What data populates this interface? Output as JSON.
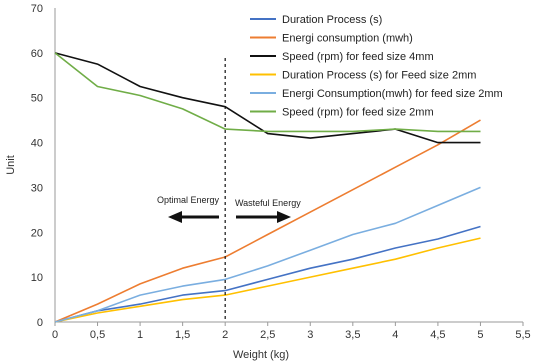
{
  "chart_data": {
    "type": "line",
    "title": "",
    "xlabel": "Weight (kg)",
    "ylabel": "Unit",
    "xlim": [
      0,
      5.5
    ],
    "ylim": [
      0,
      70
    ],
    "x_ticks": [
      "0",
      "0,5",
      "1",
      "1,5",
      "2",
      "2,5",
      "3",
      "3,5",
      "4",
      "4,5",
      "5",
      "5,5"
    ],
    "y_ticks": [
      "0",
      "10",
      "20",
      "30",
      "40",
      "50",
      "60",
      "70"
    ],
    "grid": "none",
    "legend_position": "top-right",
    "series": [
      {
        "name": "Duration Process (s)",
        "color": "#4472c4",
        "points": [
          [
            0,
            0
          ],
          [
            0.5,
            2.5
          ],
          [
            1,
            4
          ],
          [
            1.5,
            6
          ],
          [
            2,
            7
          ],
          [
            2.5,
            9.5
          ],
          [
            3,
            12
          ],
          [
            3.5,
            14
          ],
          [
            4,
            16.5
          ],
          [
            4.5,
            18.5
          ],
          [
            5,
            21.3
          ]
        ]
      },
      {
        "name": "Energi consumption (mwh)",
        "color": "#ed7d31",
        "points": [
          [
            0,
            0
          ],
          [
            0.5,
            4
          ],
          [
            1,
            8.5
          ],
          [
            1.5,
            12
          ],
          [
            2,
            14.5
          ],
          [
            2.5,
            19.5
          ],
          [
            3,
            24.5
          ],
          [
            3.5,
            29.5
          ],
          [
            4,
            34.5
          ],
          [
            4.5,
            39.5
          ],
          [
            5,
            45
          ]
        ]
      },
      {
        "name": "Speed (rpm) for feed size 4mm",
        "color": "#111111",
        "points": [
          [
            0,
            60
          ],
          [
            0.5,
            57.5
          ],
          [
            1,
            52.5
          ],
          [
            1.5,
            50
          ],
          [
            2,
            48
          ],
          [
            2.5,
            42
          ],
          [
            3,
            41
          ],
          [
            3.5,
            42
          ],
          [
            4,
            43
          ],
          [
            4.5,
            40
          ],
          [
            5,
            40
          ]
        ]
      },
      {
        "name": "Duration Process (s) for Feed size 2mm",
        "color": "#ffc000",
        "points": [
          [
            0,
            0
          ],
          [
            0.5,
            2
          ],
          [
            1,
            3.5
          ],
          [
            1.5,
            5
          ],
          [
            2,
            6
          ],
          [
            2.5,
            8
          ],
          [
            3,
            10
          ],
          [
            3.5,
            12
          ],
          [
            4,
            14
          ],
          [
            4.5,
            16.5
          ],
          [
            5,
            18.7
          ]
        ]
      },
      {
        "name": "Energi Consumption(mwh) for feed size 2mm",
        "color": "#7aaee0",
        "points": [
          [
            0,
            0
          ],
          [
            0.5,
            2.5
          ],
          [
            1,
            6
          ],
          [
            1.5,
            8
          ],
          [
            2,
            9.5
          ],
          [
            2.5,
            12.5
          ],
          [
            3,
            16
          ],
          [
            3.5,
            19.5
          ],
          [
            4,
            22
          ],
          [
            4.5,
            26
          ],
          [
            5,
            30
          ]
        ]
      },
      {
        "name": "Speed (rpm) for feed size 2mm",
        "color": "#70ad47",
        "points": [
          [
            0,
            60
          ],
          [
            0.5,
            52.5
          ],
          [
            1,
            50.5
          ],
          [
            1.5,
            47.5
          ],
          [
            2,
            43
          ],
          [
            2.5,
            42.5
          ],
          [
            3,
            42.5
          ],
          [
            3.5,
            42.5
          ],
          [
            4,
            43
          ],
          [
            4.5,
            42.5
          ],
          [
            5,
            42.5
          ]
        ]
      }
    ],
    "annotations": {
      "divider_x": 2,
      "optimal_label": "Optimal Energy",
      "wasteful_label": "Wasteful  Energy"
    }
  }
}
